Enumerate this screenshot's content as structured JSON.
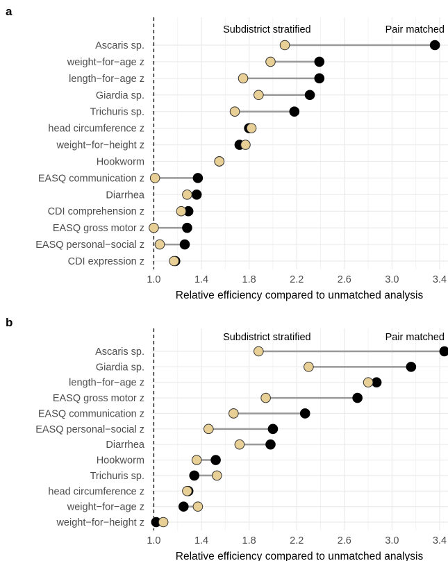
{
  "colors": {
    "subdistrict_stratified": "#e8cf95",
    "pair_matched": "#000000",
    "connector": "#999999",
    "grid": "#ebebeb",
    "text": "#4d4d4d"
  },
  "chart_data": [
    {
      "type": "scatter",
      "panel_label": "a",
      "xlabel": "Relative efficiency compared to unmatched analysis",
      "xlim": [
        0.98,
        3.47
      ],
      "xticks": [
        "1.0",
        "1.4",
        "1.8",
        "2.2",
        "2.6",
        "3.0",
        "3.4"
      ],
      "reference_line": 1.0,
      "legend_labels": {
        "subdistrict": "Subdistrict stratified",
        "pair": "Pair matched"
      },
      "categories": [
        "Ascaris sp.",
        "weight−for−age z",
        "length−for−age z",
        "Giardia sp.",
        "Trichuris sp.",
        "head circumference z",
        "weight−for−height z",
        "Hookworm",
        "EASQ communication z",
        "Diarrhea",
        "CDI comprehension z",
        "EASQ gross motor z",
        "EASQ personal−social z",
        "CDI expression z"
      ],
      "series": [
        {
          "name": "Subdistrict stratified",
          "values": [
            2.1,
            1.98,
            1.75,
            1.88,
            1.68,
            1.82,
            1.77,
            1.55,
            1.01,
            1.28,
            1.23,
            1.0,
            1.05,
            1.17
          ]
        },
        {
          "name": "Pair matched",
          "values": [
            3.36,
            2.39,
            2.39,
            2.31,
            2.18,
            1.8,
            1.72,
            1.55,
            1.37,
            1.36,
            1.29,
            1.28,
            1.26,
            1.18
          ]
        }
      ]
    },
    {
      "type": "scatter",
      "panel_label": "b",
      "xlabel": "Relative efficiency compared to unmatched analysis",
      "xlim": [
        0.98,
        3.47
      ],
      "xticks": [
        "1.0",
        "1.4",
        "1.8",
        "2.2",
        "2.6",
        "3.0",
        "3.4"
      ],
      "reference_line": 1.0,
      "legend_labels": {
        "subdistrict": "Subdistrict stratified",
        "pair": "Pair matched"
      },
      "categories": [
        "Ascaris sp.",
        "Giardia sp.",
        "length−for−age z",
        "EASQ gross motor z",
        "EASQ communication z",
        "EASQ personal−social z",
        "Diarrhea",
        "Hookworm",
        "Trichuris sp.",
        "head circumference z",
        "weight−for−age z",
        "weight−for−height z"
      ],
      "series": [
        {
          "name": "Subdistrict stratified",
          "values": [
            1.88,
            2.3,
            2.8,
            1.94,
            1.67,
            1.46,
            1.72,
            1.36,
            1.53,
            1.28,
            1.37,
            1.08
          ]
        },
        {
          "name": "Pair matched",
          "values": [
            3.44,
            3.16,
            2.87,
            2.71,
            2.27,
            2.0,
            1.98,
            1.52,
            1.34,
            1.29,
            1.25,
            1.02
          ]
        }
      ]
    }
  ]
}
